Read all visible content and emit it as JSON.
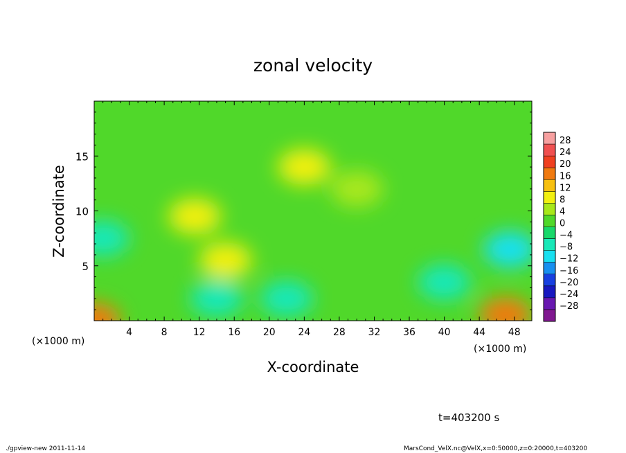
{
  "chart_data": {
    "type": "heatmap",
    "title": "zonal velocity",
    "xlabel": "X-coordinate",
    "ylabel": "Z-coordinate",
    "x_unit": "(×1000 m)",
    "y_unit": "(×1000 m)",
    "xlim": [
      0,
      50
    ],
    "ylim": [
      0,
      20
    ],
    "x_ticks": [
      4,
      8,
      12,
      16,
      20,
      24,
      28,
      32,
      36,
      40,
      44,
      48
    ],
    "y_ticks": [
      5,
      10,
      15
    ],
    "colorbar": {
      "levels": [
        28,
        24,
        20,
        16,
        12,
        8,
        4,
        0,
        -4,
        -8,
        -12,
        -16,
        -20,
        -24,
        -28
      ],
      "labels": [
        "28",
        "24",
        "20",
        "16",
        "12",
        "8",
        "4",
        "0",
        "−4",
        "−8",
        "−12",
        "−16",
        "−20",
        "−24",
        "−28"
      ],
      "colors": [
        "#f7a0a0",
        "#f05050",
        "#f04020",
        "#f07a10",
        "#f7c010",
        "#f2f010",
        "#a8e81a",
        "#50d82a",
        "#18d86a",
        "#18e8b8",
        "#18e0f0",
        "#1890f0",
        "#1840e0",
        "#1818c0",
        "#6818b0",
        "#801890"
      ]
    },
    "field_features": [
      {
        "x": 0,
        "z": 0,
        "value": 16
      },
      {
        "x": 47,
        "z": 0.5,
        "value": 16
      },
      {
        "x": 1,
        "z": 7.5,
        "value": -8
      },
      {
        "x": 47.5,
        "z": 6.5,
        "value": -10
      },
      {
        "x": 14,
        "z": 2,
        "value": -8
      },
      {
        "x": 40,
        "z": 3.5,
        "value": -8
      },
      {
        "x": 11.5,
        "z": 9.5,
        "value": 8
      },
      {
        "x": 15,
        "z": 5.5,
        "value": 10
      },
      {
        "x": 24,
        "z": 14,
        "value": 8
      },
      {
        "x": 30,
        "z": 12,
        "value": 6
      },
      {
        "x": 22,
        "z": 2,
        "value": -6
      }
    ]
  },
  "time_label": "t=403200 s",
  "footer": {
    "left": "./gpview-new  2011-11-14",
    "right": "MarsCond_VelX.nc@VelX,x=0:50000,z=0:20000,t=403200"
  }
}
